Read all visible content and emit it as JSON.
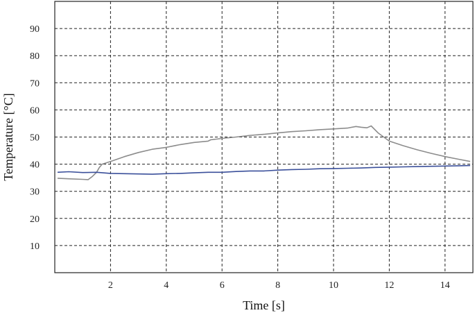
{
  "chart_data": {
    "type": "line",
    "xlabel": "Time [s]",
    "ylabel": "Temperature [°C]",
    "xlim": [
      0,
      15
    ],
    "ylim": [
      0,
      100
    ],
    "xticks": [
      2,
      4,
      6,
      8,
      10,
      12,
      14
    ],
    "yticks": [
      10,
      20,
      30,
      40,
      50,
      60,
      70,
      80,
      90
    ],
    "grid": true,
    "colors": {
      "series_gray": "#8c8c8c",
      "series_blue": "#3a4f9a",
      "grid": "#222222"
    },
    "series": [
      {
        "color": "#8c8c8c",
        "x": [
          0.1,
          0.5,
          1.0,
          1.2,
          1.35,
          1.5,
          1.6,
          1.7,
          2.0,
          2.5,
          3.0,
          3.5,
          4.0,
          4.5,
          5.0,
          5.5,
          5.6,
          6.0,
          6.5,
          7.0,
          7.5,
          8.0,
          8.5,
          9.0,
          9.5,
          10.0,
          10.5,
          10.8,
          11.0,
          11.2,
          11.35,
          11.6,
          12.0,
          12.5,
          13.0,
          13.5,
          14.0,
          14.5,
          14.9
        ],
        "y": [
          34.8,
          34.6,
          34.4,
          34.3,
          35.5,
          37.0,
          38.8,
          40.0,
          41.0,
          42.8,
          44.3,
          45.5,
          46.2,
          47.2,
          48.0,
          48.5,
          49.0,
          49.5,
          50.0,
          50.6,
          51.0,
          51.5,
          52.0,
          52.3,
          52.7,
          53.0,
          53.3,
          53.9,
          53.6,
          53.4,
          54.1,
          51.5,
          48.5,
          46.8,
          45.3,
          44.0,
          42.8,
          41.8,
          41.0
        ]
      },
      {
        "color": "#3a4f9a",
        "x": [
          0.1,
          0.5,
          1.0,
          1.5,
          2.0,
          2.5,
          3.0,
          3.5,
          4.0,
          4.5,
          5.0,
          5.5,
          6.0,
          6.5,
          7.0,
          7.5,
          8.0,
          8.5,
          9.0,
          9.5,
          10.0,
          10.5,
          11.0,
          11.5,
          12.0,
          12.5,
          13.0,
          13.5,
          14.0,
          14.5,
          14.9
        ],
        "y": [
          37.0,
          37.2,
          36.9,
          37.0,
          36.6,
          36.5,
          36.4,
          36.3,
          36.5,
          36.6,
          36.8,
          37.0,
          37.0,
          37.3,
          37.5,
          37.5,
          37.8,
          38.0,
          38.1,
          38.3,
          38.4,
          38.5,
          38.6,
          38.8,
          38.9,
          39.0,
          39.1,
          39.2,
          39.3,
          39.4,
          39.5
        ]
      }
    ]
  }
}
